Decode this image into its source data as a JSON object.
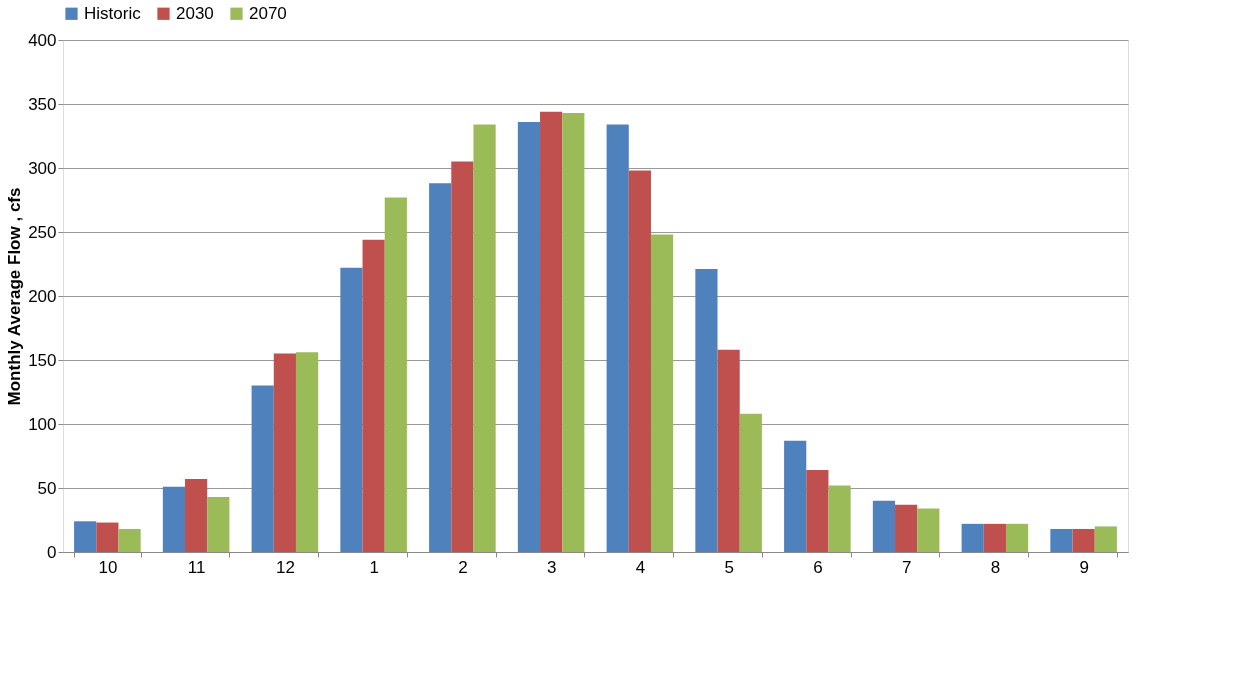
{
  "chart_data": {
    "type": "bar",
    "ylabel": "Monthly Average Flow , cfs",
    "categories": [
      "10",
      "11",
      "12",
      "1",
      "2",
      "3",
      "4",
      "5",
      "6",
      "7",
      "8",
      "9"
    ],
    "series": [
      {
        "name": "Historic",
        "color": "#4f81bd",
        "values": [
          24,
          51,
          130,
          222,
          288,
          336,
          334,
          221,
          87,
          40,
          22,
          18
        ]
      },
      {
        "name": "2030",
        "color": "#c0504d",
        "values": [
          23,
          57,
          155,
          244,
          305,
          344,
          298,
          158,
          64,
          37,
          22,
          18
        ]
      },
      {
        "name": "2070",
        "color": "#9bbb59",
        "values": [
          18,
          43,
          156,
          277,
          334,
          343,
          248,
          108,
          52,
          34,
          22,
          20
        ]
      }
    ],
    "ylim": [
      0,
      400
    ],
    "yticks": [
      0,
      50,
      100,
      150,
      200,
      250,
      300,
      350,
      400
    ],
    "grid": "y",
    "legend": "top"
  }
}
